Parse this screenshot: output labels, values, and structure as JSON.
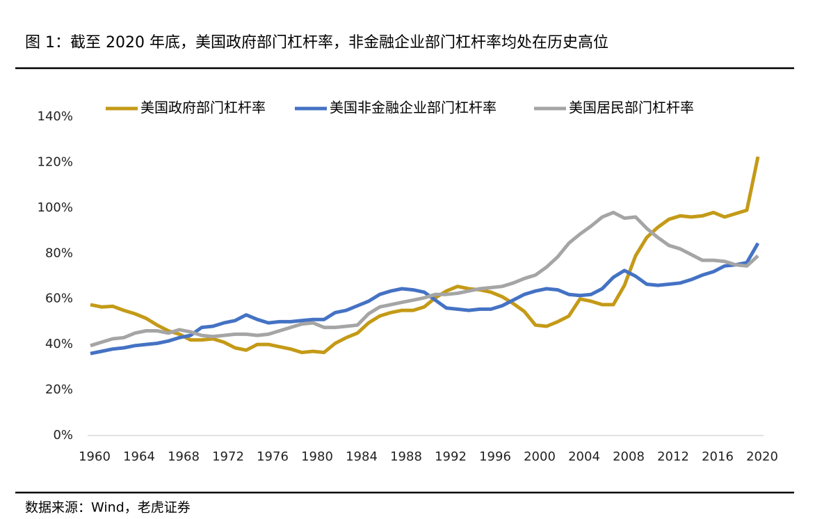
{
  "chart_data": {
    "type": "line",
    "title": "图 1：截至 2020 年底，美国政府部门杠杆率，非金融企业部门杠杆率均处在历史高位",
    "source": "数据来源：Wind，老虎证券",
    "x": [
      1960,
      1961,
      1962,
      1963,
      1964,
      1965,
      1966,
      1967,
      1968,
      1969,
      1970,
      1971,
      1972,
      1973,
      1974,
      1975,
      1976,
      1977,
      1978,
      1979,
      1980,
      1981,
      1982,
      1983,
      1984,
      1985,
      1986,
      1987,
      1988,
      1989,
      1990,
      1991,
      1992,
      1993,
      1994,
      1995,
      1996,
      1997,
      1998,
      1999,
      2000,
      2001,
      2002,
      2003,
      2004,
      2005,
      2006,
      2007,
      2008,
      2009,
      2010,
      2011,
      2012,
      2013,
      2014,
      2015,
      2016,
      2017,
      2018,
      2019,
      2020
    ],
    "xlim": [
      1960,
      2020
    ],
    "xticks": [
      1960,
      1964,
      1968,
      1972,
      1976,
      1980,
      1984,
      1988,
      1992,
      1996,
      2000,
      2004,
      2008,
      2012,
      2016,
      2020
    ],
    "ylim": [
      0,
      140
    ],
    "yticks": [
      {
        "value": 0,
        "label": "0%"
      },
      {
        "value": 20,
        "label": "20%"
      },
      {
        "value": 40,
        "label": "40%"
      },
      {
        "value": 60,
        "label": "60%"
      },
      {
        "value": 80,
        "label": "80%"
      },
      {
        "value": 100,
        "label": "100%"
      },
      {
        "value": 120,
        "label": "120%"
      },
      {
        "value": 140,
        "label": "140%"
      }
    ],
    "grid": false,
    "legend": "top",
    "series": [
      {
        "name": "美国政府部门杠杆率",
        "color": "#C49A17",
        "values": [
          57.5,
          56.5,
          56.8,
          55,
          53.5,
          51.5,
          48.5,
          46,
          44.5,
          42,
          42,
          42.5,
          41,
          38.5,
          37.5,
          40,
          40,
          39,
          38,
          36.5,
          37,
          36.5,
          40.5,
          43,
          45,
          49.5,
          52.5,
          54,
          55,
          55,
          56.5,
          60.5,
          63.5,
          65.5,
          64.5,
          64,
          63,
          61,
          58,
          54.5,
          48.5,
          48,
          50,
          52.5,
          60,
          59,
          57.5,
          57.5,
          66,
          79,
          87,
          91.5,
          95,
          96.5,
          96,
          96.5,
          98,
          96,
          97.5,
          99,
          122.5
        ]
      },
      {
        "name": "美国非金融企业部门杠杆率",
        "color": "#4472C4",
        "values": [
          36,
          37,
          38,
          38.5,
          39.5,
          40,
          40.5,
          41.5,
          43,
          44,
          47.5,
          48,
          49.5,
          50.5,
          53,
          51,
          49.5,
          50,
          50,
          50.5,
          51,
          51,
          54,
          55,
          57,
          59,
          62,
          63.5,
          64.5,
          64,
          63,
          59.5,
          56,
          55.5,
          55,
          55.5,
          55.5,
          57,
          59.5,
          62,
          63.5,
          64.5,
          64,
          62,
          61.5,
          62,
          64.5,
          69.5,
          72.5,
          70,
          66.5,
          66,
          66.5,
          67,
          68.5,
          70.5,
          72,
          74.5,
          75,
          76,
          84.5
        ]
      },
      {
        "name": "美国居民部门杠杆率",
        "color": "#A5A5A5",
        "values": [
          39.5,
          41,
          42.5,
          43,
          45,
          46,
          46,
          45,
          46.5,
          45.5,
          44,
          43.5,
          44,
          44.5,
          44.5,
          44,
          44.5,
          46,
          47.5,
          49,
          49.5,
          47.5,
          47.5,
          48,
          48.5,
          53.5,
          56.5,
          57.5,
          58.5,
          59.5,
          60.5,
          62,
          62,
          62.5,
          63.5,
          64.5,
          65,
          65.5,
          67,
          69,
          70.5,
          74,
          78.5,
          84.5,
          88.5,
          92,
          96,
          98,
          95.5,
          96,
          91,
          87,
          83.5,
          82,
          79.5,
          77,
          77,
          76.5,
          75,
          74.5,
          79
        ]
      }
    ]
  }
}
